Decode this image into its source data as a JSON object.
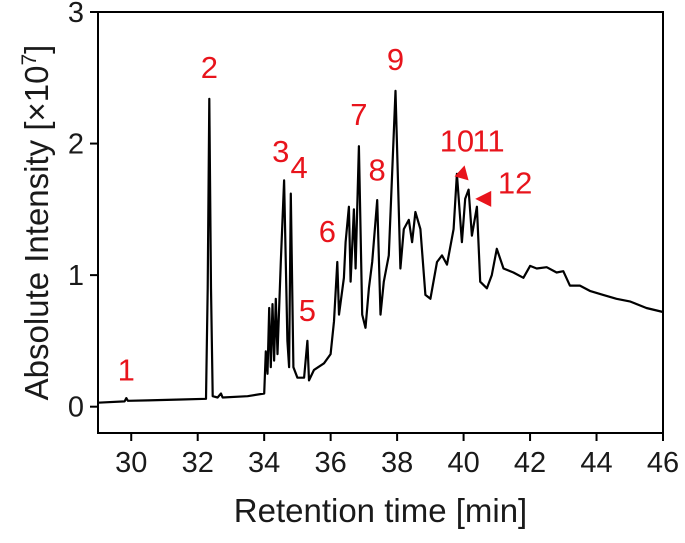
{
  "chart_data": {
    "type": "line",
    "xlabel": "Retention time [min]",
    "ylabel": "Absolute Intensity [×10",
    "ylabel_exponent": "7",
    "ylabel_suffix": "]",
    "xlim": [
      29,
      46
    ],
    "ylim": [
      -0.2,
      3
    ],
    "x_ticks": [
      30,
      32,
      34,
      36,
      38,
      40,
      42,
      44,
      46
    ],
    "y_ticks": [
      0,
      1,
      2,
      3
    ],
    "grid": false,
    "line_color": "#000000",
    "annotation_color": "#e8141c",
    "series": [
      {
        "points": [
          [
            29.0,
            0.03
          ],
          [
            29.8,
            0.04
          ],
          [
            29.85,
            0.065
          ],
          [
            29.9,
            0.045
          ],
          [
            30.5,
            0.048
          ],
          [
            31.5,
            0.055
          ],
          [
            32.25,
            0.06
          ],
          [
            32.3,
            0.9
          ],
          [
            32.35,
            2.34
          ],
          [
            32.4,
            0.9
          ],
          [
            32.45,
            0.08
          ],
          [
            32.6,
            0.07
          ],
          [
            32.7,
            0.1
          ],
          [
            32.75,
            0.07
          ],
          [
            33.5,
            0.08
          ],
          [
            34.0,
            0.1
          ],
          [
            34.05,
            0.42
          ],
          [
            34.1,
            0.25
          ],
          [
            34.15,
            0.75
          ],
          [
            34.2,
            0.3
          ],
          [
            34.25,
            0.78
          ],
          [
            34.3,
            0.35
          ],
          [
            34.35,
            0.82
          ],
          [
            34.4,
            0.4
          ],
          [
            34.5,
            1.1
          ],
          [
            34.6,
            1.72
          ],
          [
            34.7,
            0.5
          ],
          [
            34.75,
            0.3
          ],
          [
            34.8,
            1.62
          ],
          [
            34.88,
            0.3
          ],
          [
            35.0,
            0.22
          ],
          [
            35.2,
            0.22
          ],
          [
            35.3,
            0.5
          ],
          [
            35.35,
            0.2
          ],
          [
            35.5,
            0.28
          ],
          [
            35.8,
            0.33
          ],
          [
            36.0,
            0.4
          ],
          [
            36.1,
            0.65
          ],
          [
            36.2,
            1.1
          ],
          [
            36.25,
            0.7
          ],
          [
            36.4,
            0.98
          ],
          [
            36.45,
            1.25
          ],
          [
            36.55,
            1.52
          ],
          [
            36.6,
            0.95
          ],
          [
            36.7,
            1.5
          ],
          [
            36.75,
            1.05
          ],
          [
            36.85,
            1.98
          ],
          [
            36.95,
            0.7
          ],
          [
            37.05,
            0.6
          ],
          [
            37.15,
            0.9
          ],
          [
            37.25,
            1.1
          ],
          [
            37.4,
            1.57
          ],
          [
            37.5,
            0.7
          ],
          [
            37.6,
            0.95
          ],
          [
            37.75,
            1.15
          ],
          [
            37.95,
            2.4
          ],
          [
            38.1,
            1.05
          ],
          [
            38.2,
            1.35
          ],
          [
            38.35,
            1.42
          ],
          [
            38.45,
            1.25
          ],
          [
            38.55,
            1.48
          ],
          [
            38.7,
            1.35
          ],
          [
            38.85,
            0.85
          ],
          [
            39.0,
            0.82
          ],
          [
            39.2,
            1.1
          ],
          [
            39.35,
            1.15
          ],
          [
            39.5,
            1.08
          ],
          [
            39.7,
            1.35
          ],
          [
            39.8,
            1.77
          ],
          [
            39.95,
            1.25
          ],
          [
            40.05,
            1.58
          ],
          [
            40.15,
            1.65
          ],
          [
            40.25,
            1.3
          ],
          [
            40.4,
            1.52
          ],
          [
            40.5,
            0.95
          ],
          [
            40.7,
            0.9
          ],
          [
            40.85,
            1.0
          ],
          [
            41.0,
            1.2
          ],
          [
            41.2,
            1.05
          ],
          [
            41.5,
            1.02
          ],
          [
            41.8,
            0.98
          ],
          [
            42.0,
            1.07
          ],
          [
            42.2,
            1.05
          ],
          [
            42.5,
            1.06
          ],
          [
            42.8,
            1.02
          ],
          [
            43.0,
            1.03
          ],
          [
            43.2,
            0.92
          ],
          [
            43.5,
            0.92
          ],
          [
            43.8,
            0.88
          ],
          [
            44.2,
            0.85
          ],
          [
            44.6,
            0.82
          ],
          [
            45.0,
            0.8
          ],
          [
            45.5,
            0.75
          ],
          [
            46.0,
            0.72
          ]
        ]
      }
    ],
    "peak_labels": [
      {
        "label": "1",
        "x": 29.85,
        "y": 0.2
      },
      {
        "label": "2",
        "x": 32.35,
        "y": 2.5
      },
      {
        "label": "3",
        "x": 34.5,
        "y": 1.86
      },
      {
        "label": "4",
        "x": 35.05,
        "y": 1.74
      },
      {
        "label": "5",
        "x": 35.3,
        "y": 0.65
      },
      {
        "label": "6",
        "x": 35.9,
        "y": 1.25
      },
      {
        "label": "7",
        "x": 36.85,
        "y": 2.14
      },
      {
        "label": "8",
        "x": 37.4,
        "y": 1.72
      },
      {
        "label": "9",
        "x": 37.95,
        "y": 2.56
      },
      {
        "label": "10",
        "x": 39.8,
        "y": 1.94
      },
      {
        "label": "11",
        "x": 40.75,
        "y": 1.94
      },
      {
        "label": "12",
        "x": 41.55,
        "y": 1.62
      }
    ],
    "peak_arrows": [
      {
        "points_to_x": 40.15,
        "points_to_y": 1.72,
        "direction": "down-right"
      },
      {
        "points_to_x": 40.35,
        "points_to_y": 1.58,
        "direction": "left"
      }
    ]
  }
}
